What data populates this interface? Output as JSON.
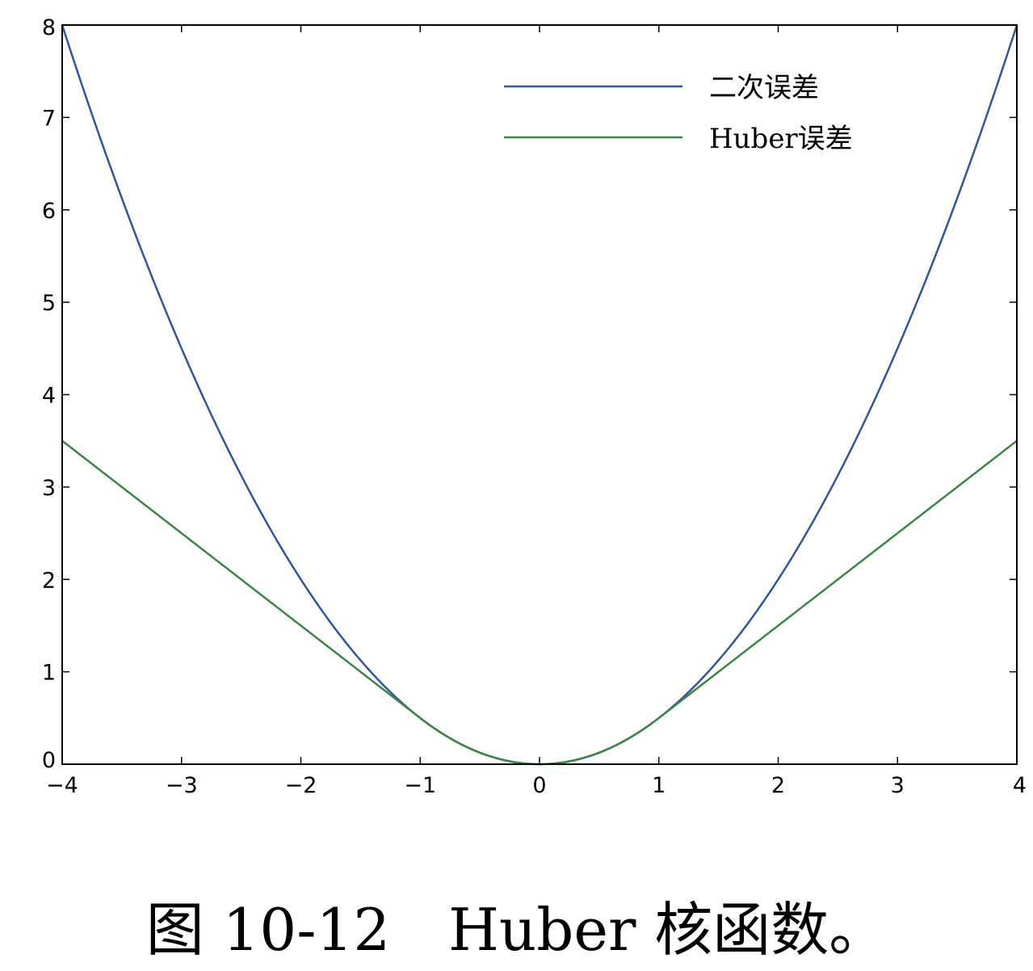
{
  "chart_data": {
    "type": "line",
    "x_range": [
      -4,
      4
    ],
    "xlim": [
      -4,
      4
    ],
    "ylim": [
      0,
      8
    ],
    "xticks": [
      "−4",
      "−3",
      "−2",
      "−1",
      "0",
      "1",
      "2",
      "3",
      "4"
    ],
    "yticks": [
      "0",
      "1",
      "2",
      "3",
      "4",
      "5",
      "6",
      "7",
      "8"
    ],
    "huber_delta": 1,
    "series": [
      {
        "name": "二次误差",
        "color": "#2e56a0",
        "x": [
          -4,
          -3,
          -2,
          -1,
          0,
          1,
          2,
          3,
          4
        ],
        "y": [
          8,
          4.5,
          2,
          0.5,
          0,
          0.5,
          2,
          4.5,
          8
        ]
      },
      {
        "name": "Huber误差",
        "color": "#3a8645",
        "x": [
          -4,
          -3,
          -2,
          -1,
          0,
          1,
          2,
          3,
          4
        ],
        "y": [
          3.5,
          2.5,
          1.5,
          0.5,
          0,
          0.5,
          1.5,
          2.5,
          3.5
        ]
      }
    ],
    "legend_position": "top-right",
    "grid": false
  },
  "caption": "图 10-12　Huber 核函数。"
}
